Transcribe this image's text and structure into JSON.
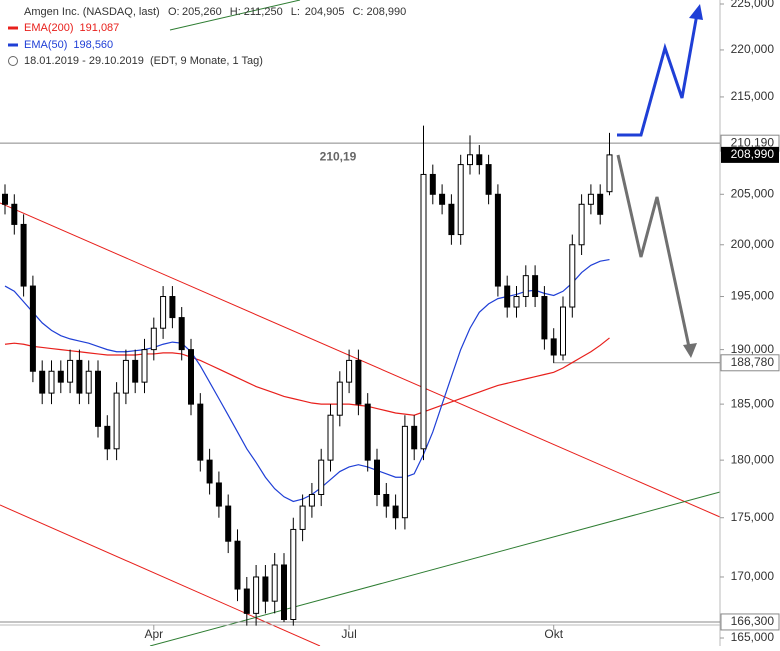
{
  "chart_data": {
    "type": "candlestick",
    "title": "Amgen Inc. (NASDAQ, last)",
    "quote": [
      {
        "name": "O:",
        "value": 205.26,
        "label": "205,260"
      },
      {
        "name": "H:",
        "value": 211.25,
        "label": "211,250"
      },
      {
        "name": "L:",
        "value": 204.905,
        "label": "204,905"
      },
      {
        "name": "C:",
        "value": 208.99,
        "label": "208,990"
      }
    ],
    "date_range": "18.01.2019 - 29.10.2019",
    "range_note": "(EDT, 9 Monate, 1 Tag)",
    "categories": [
      null,
      null,
      null,
      null,
      null,
      null,
      null,
      null,
      null,
      null,
      null,
      null,
      null,
      null,
      null,
      null,
      "Apr",
      null,
      null,
      null,
      null,
      null,
      null,
      null,
      null,
      null,
      null,
      null,
      null,
      null,
      null,
      null,
      null,
      null,
      null,
      null,
      null,
      "Jul",
      null,
      null,
      null,
      null,
      null,
      null,
      null,
      null,
      null,
      null,
      null,
      null,
      null,
      null,
      null,
      null,
      null,
      null,
      null,
      null,
      null,
      "Okt",
      null,
      null,
      null,
      null,
      null,
      null
    ],
    "open": [
      205,
      204,
      202,
      196,
      188,
      186,
      188,
      187,
      189,
      186,
      188,
      183,
      181,
      186,
      189,
      187,
      190,
      192,
      195,
      193,
      190,
      185,
      180,
      178,
      176,
      173,
      169,
      167,
      170,
      168,
      171,
      166.5,
      174,
      176,
      177,
      180,
      184,
      187,
      189,
      185,
      180,
      177,
      176,
      175,
      183,
      181,
      207,
      205,
      204,
      201,
      208,
      209,
      208,
      205,
      196,
      194,
      195,
      197,
      195,
      191,
      189.5,
      194,
      200,
      204,
      205,
      205.26
    ],
    "high": [
      206,
      205,
      203,
      197,
      189,
      189,
      189,
      190,
      190,
      189,
      189,
      184,
      187,
      190,
      190,
      191,
      193,
      196,
      196,
      194,
      191,
      186,
      181,
      179,
      177,
      174,
      170,
      171,
      171,
      172,
      172,
      175,
      177,
      178,
      181,
      185,
      188,
      190,
      190,
      186,
      181,
      178,
      177,
      184,
      184,
      212,
      208,
      206,
      205,
      209,
      211,
      210,
      209,
      206,
      197,
      196,
      198,
      198,
      196,
      192,
      195,
      201,
      205,
      206,
      206,
      211.25
    ],
    "low": [
      203,
      201,
      195,
      187,
      185,
      185,
      186,
      186,
      185,
      185,
      182,
      180,
      180,
      185,
      186,
      186,
      189,
      191,
      192,
      189,
      184,
      179,
      177,
      175,
      172,
      168,
      166,
      166,
      167,
      167,
      166.3,
      166,
      173,
      175,
      176,
      179,
      183,
      186,
      184,
      179,
      176,
      175,
      174,
      174,
      180,
      180,
      204,
      203,
      200,
      200,
      207,
      207,
      204,
      195,
      193,
      193,
      194,
      194,
      190,
      188.78,
      189,
      193,
      199,
      203,
      202,
      204.905
    ],
    "close": [
      204,
      202,
      196,
      188,
      186,
      188,
      187,
      189,
      186,
      188,
      183,
      181,
      186,
      189,
      187,
      190,
      192,
      195,
      193,
      190,
      185,
      180,
      178,
      176,
      173,
      169,
      167,
      170,
      168,
      171,
      166.5,
      174,
      176,
      177,
      180,
      184,
      187,
      189,
      185,
      180,
      177,
      176,
      175,
      183,
      181,
      207,
      205,
      204,
      201,
      208,
      209,
      208,
      205,
      196,
      194,
      195,
      197,
      195,
      191,
      189.5,
      194,
      200,
      204,
      205,
      203,
      208.99
    ],
    "up_color": "#ffffff",
    "down_color": "#000000",
    "series": [
      {
        "name": "EMA(200)",
        "color": "#e8201c",
        "legend_value": {
          "value": 191.087,
          "label": "191,087"
        },
        "values": [
          190.5,
          190.6,
          190.5,
          190.3,
          190.2,
          190.1,
          190,
          189.9,
          189.8,
          189.7,
          189.6,
          189.5,
          189.5,
          189.5,
          189.5,
          189.6,
          189.6,
          189.7,
          189.7,
          189.6,
          189.3,
          189,
          188.6,
          188.2,
          187.8,
          187.4,
          187,
          186.6,
          186.3,
          186,
          185.7,
          185.5,
          185.3,
          185.1,
          185,
          185,
          185,
          185,
          184.9,
          184.8,
          184.6,
          184.4,
          184.2,
          184.1,
          184,
          184.3,
          184.6,
          184.9,
          185.2,
          185.5,
          185.8,
          186.1,
          186.4,
          186.7,
          186.9,
          187.1,
          187.3,
          187.5,
          187.7,
          187.9,
          188.3,
          188.8,
          189.3,
          189.8,
          190.4,
          191.087
        ]
      },
      {
        "name": "EMA(50)",
        "color": "#1f3fd6",
        "legend_value": {
          "value": 198.56,
          "label": "198,560"
        },
        "values": [
          196,
          195.5,
          194.5,
          193.5,
          192.5,
          191.8,
          191.3,
          191,
          190.8,
          190.6,
          190.3,
          190,
          189.8,
          189.8,
          189.9,
          190,
          190.2,
          190.5,
          190.7,
          190.6,
          189.8,
          188.5,
          187,
          185.5,
          184,
          182.5,
          181,
          179.8,
          178.5,
          177.5,
          176.8,
          176.4,
          176.6,
          177,
          177.6,
          178.3,
          179,
          179.4,
          179.6,
          179.4,
          179.1,
          178.8,
          178.5,
          178.5,
          178.8,
          180.5,
          182.5,
          185,
          187.5,
          190,
          192,
          193.5,
          194.3,
          194.8,
          195,
          195.2,
          195.5,
          195.6,
          195.3,
          195.1,
          195.5,
          196.3,
          197.3,
          198,
          198.4,
          198.56
        ]
      }
    ],
    "levels": [
      {
        "value": 210.19,
        "label": "210,190"
      },
      {
        "value": 188.78,
        "label": "188,780"
      },
      {
        "value": 166.3,
        "label": "166,300"
      }
    ],
    "annotation": {
      "value": 210.19,
      "label": "210,19"
    },
    "log_scale": true,
    "ylim": [
      165,
      225
    ],
    "yticks": [
      {
        "value": 165,
        "label": "165,000"
      },
      {
        "value": 170,
        "label": "170,000"
      },
      {
        "value": 175,
        "label": "175,000"
      },
      {
        "value": 180,
        "label": "180,000"
      },
      {
        "value": 185,
        "label": "185,000"
      },
      {
        "value": 190,
        "label": "190,000"
      },
      {
        "value": 195,
        "label": "195,000"
      },
      {
        "value": 200,
        "label": "200,000"
      },
      {
        "value": 205,
        "label": "205,000"
      },
      {
        "value": 210,
        "label": "210,000"
      },
      {
        "value": 215,
        "label": "215,000"
      },
      {
        "value": 220,
        "label": "220,000"
      },
      {
        "value": 225,
        "label": "225,000"
      }
    ]
  }
}
